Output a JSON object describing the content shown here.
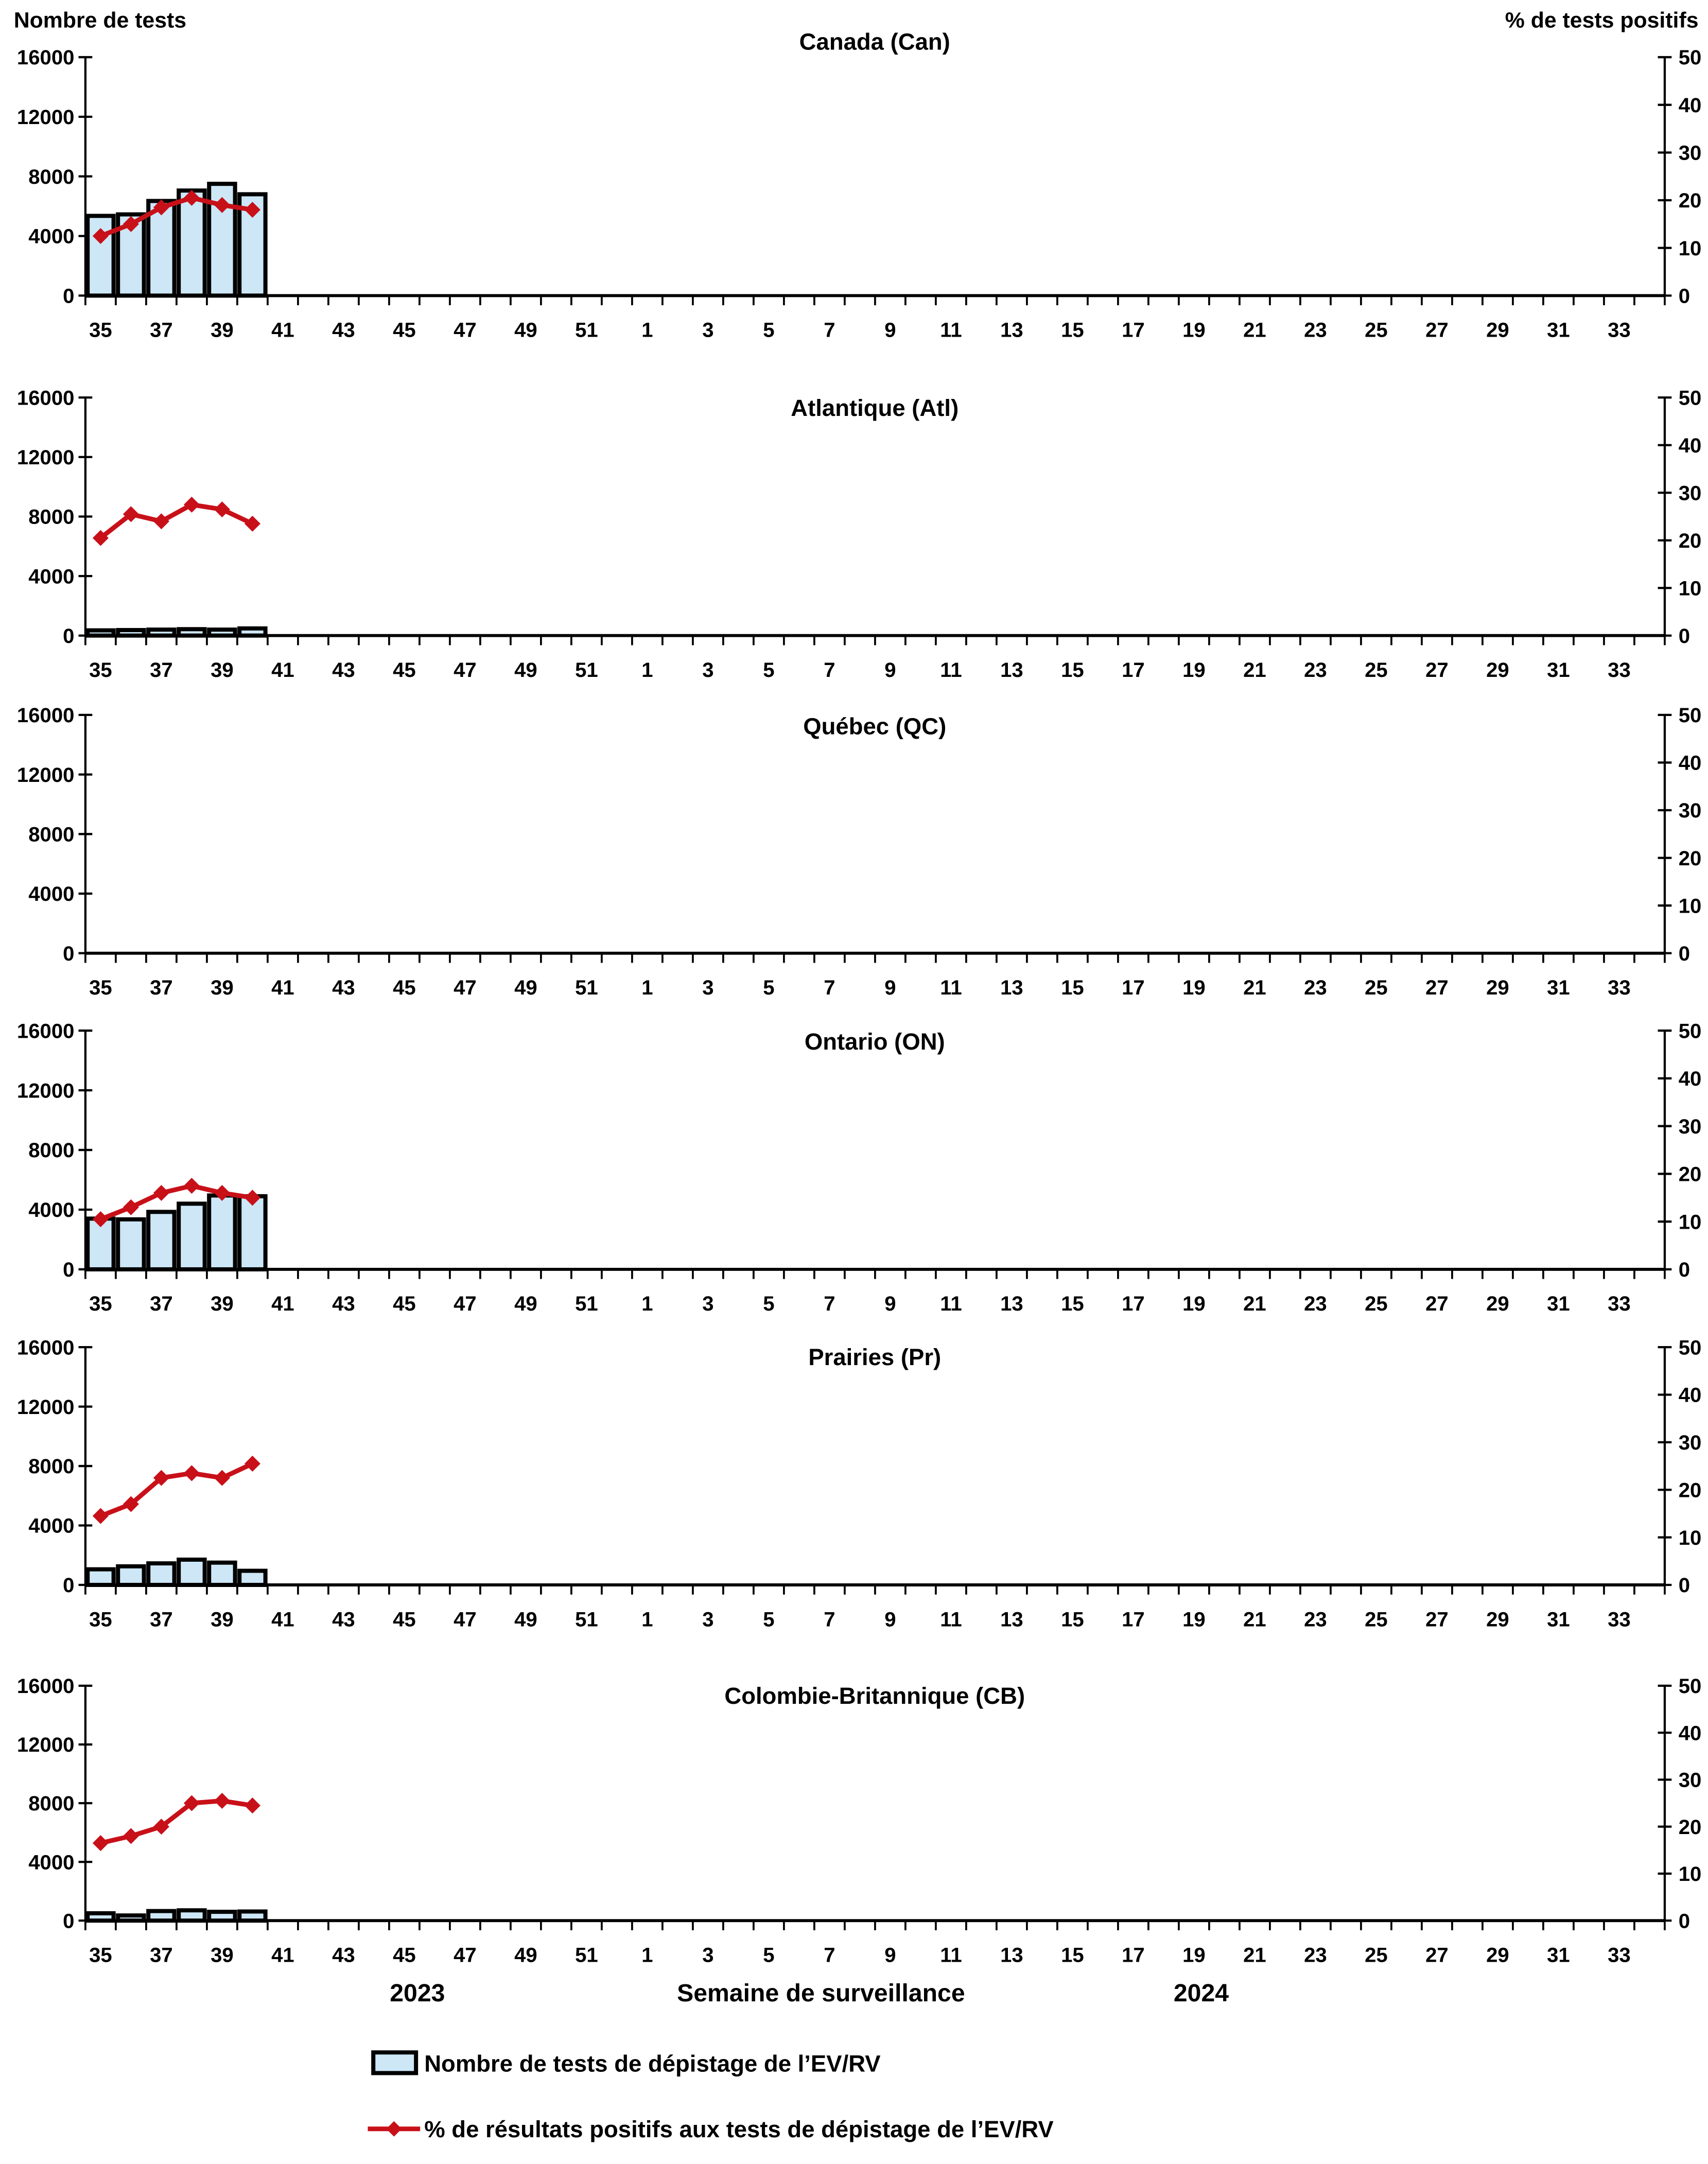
{
  "figure": {
    "left_axis_title": "Nombre de tests",
    "right_axis_title": "% de tests positifs",
    "x_axis_title": "Semaine de surveillance",
    "year_left": "2023",
    "year_right": "2024",
    "legend": [
      {
        "symbol": "bar-swatch",
        "label": "Nombre de tests de dépistage de l’EV/RV"
      },
      {
        "symbol": "line-diamond",
        "label": "% de résultats positifs aux tests de dépistage de l’EV/RV"
      }
    ],
    "colors": {
      "bar_fill": "#CDE7F7",
      "bar_stroke": "#000000",
      "line": "#C81019",
      "axis": "#000000",
      "background": "#FFFFFF"
    }
  },
  "axes": {
    "left_ticks": [
      0,
      4000,
      8000,
      12000,
      16000
    ],
    "right_ticks": [
      0,
      10,
      20,
      30,
      40,
      50
    ],
    "ylim_left": [
      0,
      16000
    ],
    "ylim_right": [
      0,
      50
    ],
    "x_tick_labels": [
      "35",
      "37",
      "39",
      "41",
      "43",
      "45",
      "47",
      "49",
      "51",
      "1",
      "3",
      "5",
      "7",
      "9",
      "11",
      "13",
      "15",
      "17",
      "19",
      "21",
      "23",
      "25",
      "27",
      "29",
      "31",
      "33"
    ],
    "weeks_2023_range": [
      35,
      52
    ],
    "weeks_2024_range": [
      1,
      34
    ]
  },
  "chart_data": [
    {
      "type": "bar+line",
      "title": "Canada (Can)",
      "weeks": [
        35,
        36,
        37,
        38,
        39,
        40
      ],
      "series": [
        {
          "name": "Nombre de tests de dépistage de l’EV/RV",
          "axis": "left",
          "values": [
            5350,
            5450,
            6350,
            7050,
            7500,
            6800
          ]
        },
        {
          "name": "% de résultats positifs aux tests de dépistage de l’EV/RV",
          "axis": "right",
          "values": [
            12.5,
            15,
            18.5,
            20.5,
            19,
            18
          ]
        }
      ]
    },
    {
      "type": "bar+line",
      "title": "Atlantique (Atl)",
      "weeks": [
        35,
        36,
        37,
        38,
        39,
        40
      ],
      "series": [
        {
          "name": "Nombre de tests de dépistage de l’EV/RV",
          "axis": "left",
          "values": [
            350,
            370,
            400,
            430,
            400,
            480
          ]
        },
        {
          "name": "% de résultats positifs aux tests de dépistage de l’EV/RV",
          "axis": "right",
          "values": [
            20.5,
            25.5,
            24,
            27.5,
            26.5,
            23.5
          ]
        }
      ]
    },
    {
      "type": "bar+line",
      "title": "Québec (QC)",
      "weeks": [],
      "series": [
        {
          "name": "Nombre de tests de dépistage de l’EV/RV",
          "axis": "left",
          "values": []
        },
        {
          "name": "% de résultats positifs aux tests de dépistage de l’EV/RV",
          "axis": "right",
          "values": []
        }
      ]
    },
    {
      "type": "bar+line",
      "title": "Ontario (ON)",
      "weeks": [
        35,
        36,
        37,
        38,
        39,
        40
      ],
      "series": [
        {
          "name": "Nombre de tests de dépistage de l’EV/RV",
          "axis": "left",
          "values": [
            3400,
            3350,
            3850,
            4400,
            4950,
            4900
          ]
        },
        {
          "name": "% de résultats positifs aux tests de dépistage de l’EV/RV",
          "axis": "right",
          "values": [
            10.5,
            13,
            16,
            17.5,
            16,
            15
          ]
        }
      ]
    },
    {
      "type": "bar+line",
      "title": "Prairies (Pr)",
      "weeks": [
        35,
        36,
        37,
        38,
        39,
        40
      ],
      "series": [
        {
          "name": "Nombre de tests de dépistage de l’EV/RV",
          "axis": "left",
          "values": [
            1050,
            1250,
            1450,
            1700,
            1500,
            950
          ]
        },
        {
          "name": "% de résultats positifs aux tests de dépistage de l’EV/RV",
          "axis": "right",
          "values": [
            14.5,
            17,
            22.5,
            23.5,
            22.5,
            25.5
          ]
        }
      ]
    },
    {
      "type": "bar+line",
      "title": "Colombie-Britannique (CB)",
      "weeks": [
        35,
        36,
        37,
        38,
        39,
        40
      ],
      "series": [
        {
          "name": "Nombre de tests de dépistage de l’EV/RV",
          "axis": "left",
          "values": [
            500,
            350,
            650,
            700,
            600,
            620
          ]
        },
        {
          "name": "% de résultats positifs aux tests de dépistage de l’EV/RV",
          "axis": "right",
          "values": [
            16.5,
            18,
            20,
            25,
            25.5,
            24.5
          ]
        }
      ]
    }
  ]
}
